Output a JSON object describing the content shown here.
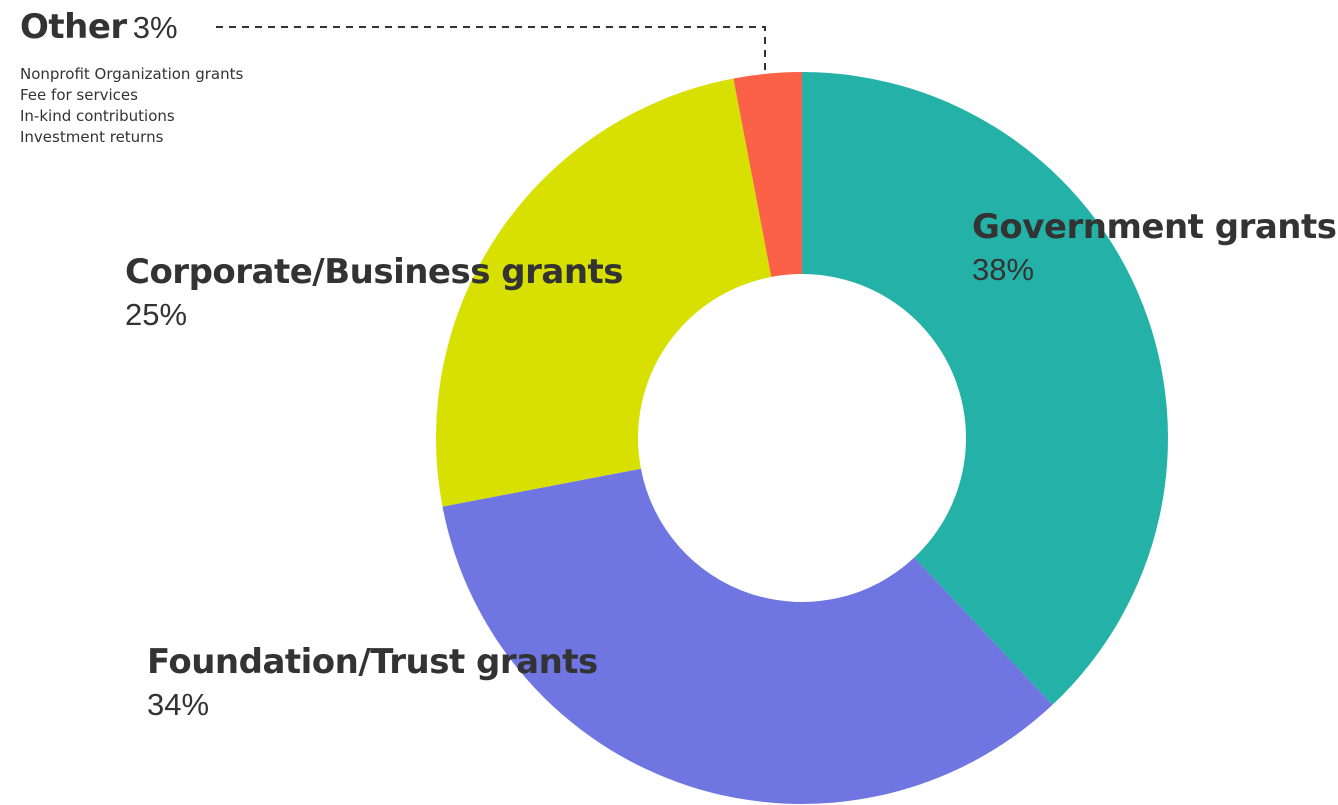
{
  "chart_data": {
    "type": "pie",
    "donut": true,
    "slices": [
      {
        "name": "Government grants",
        "value": 38,
        "pct_label": "38%",
        "color": "#24b2a8"
      },
      {
        "name": "Foundation/Trust grants",
        "value": 34,
        "pct_label": "34%",
        "color": "#6f75e1"
      },
      {
        "name": "Corporate/Business grants",
        "value": 25,
        "pct_label": "25%",
        "color": "#d7e000"
      },
      {
        "name": "Other",
        "value": 3,
        "pct_label": "3%",
        "color": "#fa6147"
      }
    ],
    "other_breakdown": [
      "Nonprofit Organization grants",
      "Fee for services",
      "In-kind contributions",
      "Investment returns"
    ],
    "start_angle": "12 o'clock",
    "direction": "clockwise"
  }
}
